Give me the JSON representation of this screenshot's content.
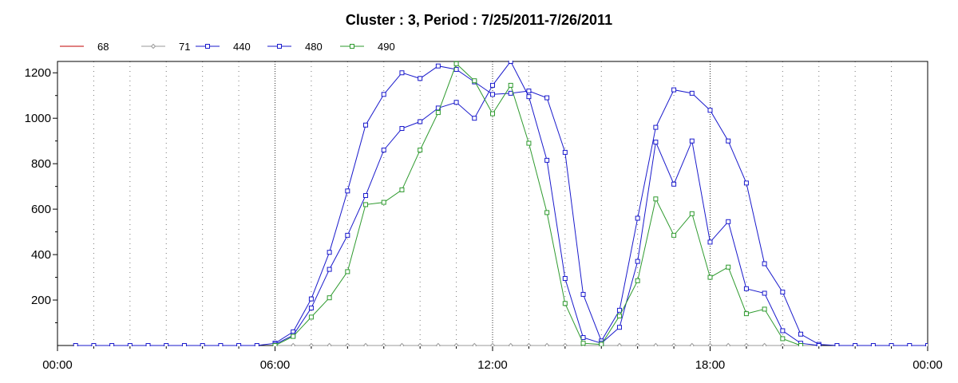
{
  "chart_data": {
    "type": "line",
    "title": "Cluster : 3, Period : 7/25/2011-7/26/2011",
    "xlabel": "",
    "ylabel": "",
    "x_ticks": [
      "00:00",
      "06:00",
      "12:00",
      "18:00",
      "00:00"
    ],
    "y_ticks": [
      "200",
      "400",
      "600",
      "800",
      "1000",
      "1200"
    ],
    "xlim": [
      0,
      24
    ],
    "ylim": [
      0,
      1250
    ],
    "grid": true,
    "legend_position": "top-left",
    "series": [
      {
        "name": "68",
        "color": "#c00000",
        "marker": "none",
        "points": []
      },
      {
        "name": "71",
        "color": "#999999",
        "marker": "diamond",
        "points": [
          [
            6.0,
            0
          ],
          [
            6.5,
            0
          ],
          [
            7.0,
            0
          ],
          [
            7.5,
            0
          ],
          [
            8.0,
            0
          ],
          [
            8.5,
            0
          ],
          [
            9.0,
            0
          ],
          [
            9.5,
            0
          ],
          [
            10.0,
            0
          ],
          [
            10.5,
            0
          ],
          [
            11.0,
            0
          ],
          [
            11.5,
            0
          ],
          [
            12.0,
            0
          ],
          [
            12.5,
            0
          ],
          [
            13.0,
            0
          ],
          [
            13.5,
            0
          ],
          [
            14.0,
            0
          ],
          [
            14.5,
            0
          ],
          [
            15.0,
            0
          ],
          [
            15.5,
            0
          ],
          [
            16.0,
            0
          ],
          [
            16.5,
            0
          ],
          [
            17.0,
            0
          ],
          [
            17.5,
            0
          ],
          [
            18.0,
            0
          ],
          [
            18.5,
            0
          ],
          [
            19.0,
            0
          ],
          [
            19.5,
            0
          ],
          [
            20.0,
            0
          ],
          [
            20.5,
            0
          ],
          [
            21.0,
            0
          ]
        ]
      },
      {
        "name": "440",
        "color": "#1a1acc",
        "marker": "square",
        "points": [
          [
            0.5,
            0
          ],
          [
            1.0,
            0
          ],
          [
            1.5,
            0
          ],
          [
            2.0,
            0
          ],
          [
            2.5,
            0
          ],
          [
            3.0,
            0
          ],
          [
            3.5,
            0
          ],
          [
            4.0,
            0
          ],
          [
            4.5,
            0
          ],
          [
            5.0,
            0
          ],
          [
            5.5,
            0
          ],
          [
            6.0,
            10
          ],
          [
            6.5,
            60
          ],
          [
            7.0,
            205
          ],
          [
            7.5,
            410
          ],
          [
            8.0,
            680
          ],
          [
            8.5,
            970
          ],
          [
            9.0,
            1105
          ],
          [
            9.5,
            1200
          ],
          [
            10.0,
            1175
          ],
          [
            10.5,
            1230
          ],
          [
            11.0,
            1215
          ],
          [
            11.5,
            1160
          ],
          [
            12.0,
            1105
          ],
          [
            12.5,
            1110
          ],
          [
            13.0,
            1120
          ],
          [
            13.5,
            1090
          ],
          [
            14.0,
            850
          ],
          [
            14.5,
            225
          ],
          [
            15.0,
            20
          ],
          [
            15.5,
            155
          ],
          [
            16.0,
            560
          ],
          [
            16.5,
            960
          ],
          [
            17.0,
            1125
          ],
          [
            17.5,
            1110
          ],
          [
            18.0,
            1035
          ],
          [
            18.5,
            900
          ],
          [
            19.0,
            715
          ],
          [
            19.5,
            360
          ],
          [
            20.0,
            235
          ],
          [
            20.5,
            50
          ],
          [
            21.0,
            5
          ],
          [
            21.5,
            0
          ],
          [
            22.0,
            0
          ],
          [
            22.5,
            0
          ],
          [
            23.0,
            0
          ],
          [
            23.5,
            0
          ],
          [
            24.0,
            0
          ]
        ]
      },
      {
        "name": "480",
        "color": "#1a1acc",
        "marker": "square",
        "points": [
          [
            6.0,
            5
          ],
          [
            6.5,
            45
          ],
          [
            7.0,
            165
          ],
          [
            7.5,
            335
          ],
          [
            8.0,
            485
          ],
          [
            8.5,
            660
          ],
          [
            9.0,
            860
          ],
          [
            9.5,
            955
          ],
          [
            10.0,
            985
          ],
          [
            10.5,
            1045
          ],
          [
            11.0,
            1070
          ],
          [
            11.5,
            1000
          ],
          [
            12.0,
            1145
          ],
          [
            12.5,
            1250
          ],
          [
            13.0,
            1095
          ],
          [
            13.5,
            815
          ],
          [
            14.0,
            295
          ],
          [
            14.5,
            35
          ],
          [
            15.0,
            10
          ],
          [
            15.5,
            80
          ],
          [
            16.0,
            370
          ],
          [
            16.5,
            895
          ],
          [
            17.0,
            710
          ],
          [
            17.5,
            900
          ],
          [
            18.0,
            455
          ],
          [
            18.5,
            545
          ],
          [
            19.0,
            250
          ],
          [
            19.5,
            230
          ],
          [
            20.0,
            65
          ],
          [
            20.5,
            10
          ],
          [
            21.0,
            0
          ]
        ]
      },
      {
        "name": "490",
        "color": "#2e9a2e",
        "marker": "square",
        "points": [
          [
            6.0,
            0
          ],
          [
            6.5,
            40
          ],
          [
            7.0,
            125
          ],
          [
            7.5,
            210
          ],
          [
            8.0,
            325
          ],
          [
            8.5,
            620
          ],
          [
            9.0,
            630
          ],
          [
            9.5,
            685
          ],
          [
            10.0,
            860
          ],
          [
            10.5,
            1025
          ],
          [
            11.0,
            1240
          ],
          [
            11.5,
            1165
          ],
          [
            12.0,
            1020
          ],
          [
            12.5,
            1145
          ],
          [
            13.0,
            890
          ],
          [
            13.5,
            585
          ],
          [
            14.0,
            185
          ],
          [
            14.5,
            10
          ],
          [
            15.0,
            5
          ],
          [
            15.5,
            130
          ],
          [
            16.0,
            285
          ],
          [
            16.5,
            645
          ],
          [
            17.0,
            485
          ],
          [
            17.5,
            580
          ],
          [
            18.0,
            300
          ],
          [
            18.5,
            345
          ],
          [
            19.0,
            140
          ],
          [
            19.5,
            160
          ],
          [
            20.0,
            30
          ],
          [
            20.5,
            0
          ]
        ]
      }
    ]
  }
}
